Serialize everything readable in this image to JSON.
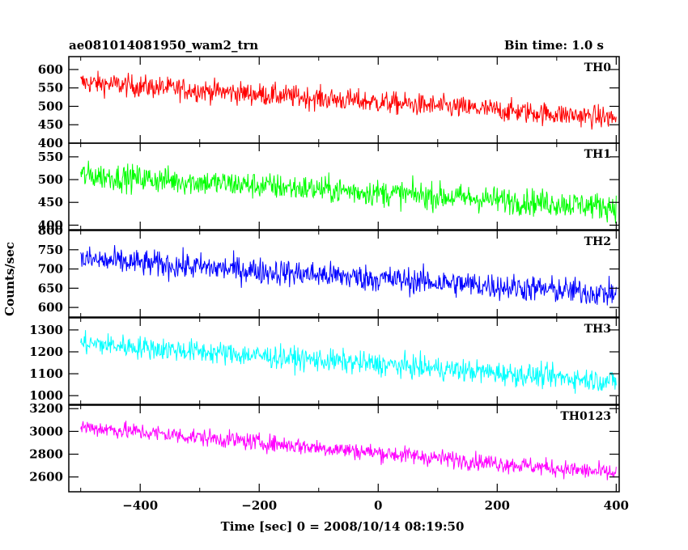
{
  "header": {
    "title": "ae081014081950_wam2_trn",
    "bin_time": "Bin time: 1.0 s"
  },
  "chart_data": {
    "type": "line",
    "ylabel": "Counts/sec",
    "xlabel": "Time [sec] 0 = 2008/10/14 08:19:50",
    "xlim": [
      -520,
      405
    ],
    "x_ticks": [
      -400,
      -200,
      0,
      200,
      400
    ],
    "x_tick_labels": [
      "−400",
      "−200",
      "0",
      "200",
      "400"
    ],
    "x_start": -500,
    "x_end": 400,
    "bin": 1.0,
    "panels": [
      {
        "name": "TH0",
        "color": "#ff0000",
        "ylim": [
          400,
          635
        ],
        "y_ticks": [
          400,
          450,
          500,
          550,
          600
        ],
        "y_tick_labels": [
          "400",
          "450",
          "500",
          "550",
          "600"
        ],
        "trend": [
          565,
          468
        ],
        "noise": 28
      },
      {
        "name": "TH1",
        "color": "#00ff00",
        "ylim": [
          390,
          580
        ],
        "y_ticks": [
          400,
          450,
          500,
          550
        ],
        "y_tick_labels": [
          "400",
          "450",
          "500",
          "550"
        ],
        "trend": [
          510,
          440
        ],
        "noise": 27
      },
      {
        "name": "TH2",
        "color": "#0000ff",
        "ylim": [
          575,
          800
        ],
        "y_ticks": [
          600,
          650,
          700,
          750,
          800
        ],
        "y_tick_labels": [
          "600",
          "650",
          "700",
          "750",
          "800"
        ],
        "trend": [
          725,
          635
        ],
        "noise": 32
      },
      {
        "name": "TH3",
        "color": "#00ffff",
        "ylim": [
          960,
          1355
        ],
        "y_ticks": [
          1000,
          1100,
          1200,
          1300
        ],
        "y_tick_labels": [
          "1000",
          "1100",
          "1200",
          "1300"
        ],
        "trend": [
          1240,
          1065
        ],
        "noise": 48
      },
      {
        "name": "TH0123",
        "color": "#ff00ff",
        "ylim": [
          2470,
          3230
        ],
        "y_ticks": [
          2600,
          2800,
          3000,
          3200
        ],
        "y_tick_labels": [
          "2600",
          "2800",
          "3000",
          "3200"
        ],
        "trend": [
          3040,
          2630
        ],
        "noise": 70
      }
    ]
  }
}
